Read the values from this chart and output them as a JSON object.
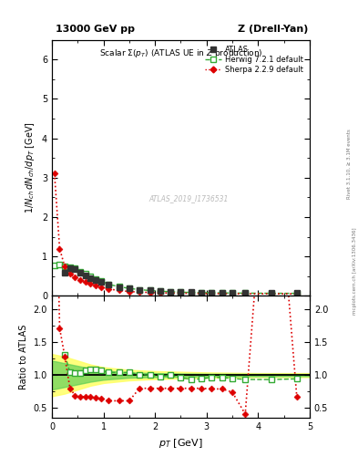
{
  "title_top": "13000 GeV pp",
  "title_right": "Z (Drell-Yan)",
  "plot_title": "Scalar $\\Sigma(p_T)$ (ATLAS UE in $Z$ production)",
  "ylabel_main": "$1/N_{ch}\\,dN_{ch}/dp_T$ [GeV]",
  "ylabel_ratio": "Ratio to ATLAS",
  "xlabel": "$p_T$ [GeV]",
  "watermark": "ATLAS_2019_I1736531",
  "right_label": "Rivet 3.1.10, ≥ 3.1M events",
  "right_label2": "mcplots.cern.ch [arXiv:1306.3436]",
  "atlas_x": [
    0.25,
    0.35,
    0.45,
    0.55,
    0.65,
    0.75,
    0.85,
    0.95,
    1.1,
    1.3,
    1.5,
    1.7,
    1.9,
    2.1,
    2.3,
    2.5,
    2.7,
    2.9,
    3.1,
    3.3,
    3.5,
    3.75,
    4.25,
    4.75
  ],
  "atlas_y": [
    0.58,
    0.7,
    0.68,
    0.6,
    0.53,
    0.46,
    0.4,
    0.355,
    0.285,
    0.225,
    0.185,
    0.158,
    0.138,
    0.122,
    0.11,
    0.1,
    0.093,
    0.088,
    0.083,
    0.08,
    0.078,
    0.076,
    0.073,
    0.07
  ],
  "atlas_yerr": [
    0.025,
    0.025,
    0.025,
    0.02,
    0.018,
    0.016,
    0.014,
    0.012,
    0.01,
    0.008,
    0.007,
    0.006,
    0.005,
    0.005,
    0.004,
    0.004,
    0.003,
    0.003,
    0.003,
    0.003,
    0.003,
    0.003,
    0.003,
    0.003
  ],
  "herwig_x": [
    0.05,
    0.15,
    0.25,
    0.35,
    0.45,
    0.55,
    0.65,
    0.75,
    0.85,
    0.95,
    1.1,
    1.3,
    1.5,
    1.7,
    1.9,
    2.1,
    2.3,
    2.5,
    2.7,
    2.9,
    3.1,
    3.3,
    3.5,
    3.75,
    4.25,
    4.75
  ],
  "herwig_y": [
    0.78,
    0.79,
    0.76,
    0.73,
    0.7,
    0.62,
    0.565,
    0.5,
    0.43,
    0.38,
    0.295,
    0.235,
    0.192,
    0.16,
    0.138,
    0.12,
    0.107,
    0.096,
    0.088,
    0.083,
    0.08,
    0.077,
    0.074,
    0.071,
    0.068,
    0.066
  ],
  "sherpa_x": [
    0.05,
    0.15,
    0.25,
    0.35,
    0.45,
    0.55,
    0.65,
    0.75,
    0.85,
    0.95,
    1.1,
    1.3,
    1.5,
    1.7,
    1.9,
    2.1,
    2.3,
    2.5,
    2.7,
    2.9,
    3.1,
    3.3,
    3.5,
    3.75,
    4.25,
    4.75
  ],
  "sherpa_y": [
    3.1,
    1.2,
    0.74,
    0.56,
    0.47,
    0.41,
    0.355,
    0.31,
    0.265,
    0.228,
    0.178,
    0.138,
    0.112,
    0.098,
    0.088,
    0.08,
    0.074,
    0.07,
    0.067,
    0.064,
    0.062,
    0.06,
    0.058,
    0.057,
    0.055,
    0.054
  ],
  "herwig_ratio_x": [
    0.25,
    0.35,
    0.45,
    0.55,
    0.65,
    0.75,
    0.85,
    0.95,
    1.1,
    1.3,
    1.5,
    1.7,
    1.9,
    2.1,
    2.3,
    2.5,
    2.7,
    2.9,
    3.1,
    3.3,
    3.5,
    3.75,
    4.25,
    4.75
  ],
  "herwig_ratio_y": [
    1.31,
    1.04,
    1.03,
    1.03,
    1.07,
    1.09,
    1.08,
    1.07,
    1.04,
    1.04,
    1.04,
    1.01,
    1.0,
    0.98,
    0.997,
    0.96,
    0.935,
    0.943,
    0.965,
    0.963,
    0.949,
    0.934,
    0.932,
    0.943
  ],
  "sherpa_ratio_x": [
    0.05,
    0.15,
    0.25,
    0.35,
    0.45,
    0.55,
    0.65,
    0.75,
    0.85,
    0.95,
    1.1,
    1.3,
    1.5,
    1.7,
    1.9,
    2.1,
    2.3,
    2.5,
    2.7,
    2.9,
    3.1,
    3.3,
    3.5,
    3.75,
    4.25,
    4.75
  ],
  "sherpa_ratio_y": [
    5.3,
    1.71,
    1.28,
    0.8,
    0.69,
    0.67,
    0.67,
    0.67,
    0.66,
    0.64,
    0.61,
    0.61,
    0.61,
    0.8,
    0.8,
    0.8,
    0.8,
    0.8,
    0.8,
    0.8,
    0.79,
    0.79,
    0.74,
    0.41,
    5.5,
    0.67
  ],
  "band_x": [
    0.0,
    0.25,
    0.5,
    0.75,
    1.0,
    1.5,
    2.0,
    2.5,
    3.0,
    3.5,
    4.0,
    4.5,
    5.0
  ],
  "band_yellow_low": [
    0.68,
    0.72,
    0.78,
    0.84,
    0.88,
    0.92,
    0.94,
    0.95,
    0.96,
    0.965,
    0.97,
    0.97,
    0.97
  ],
  "band_yellow_high": [
    1.32,
    1.28,
    1.22,
    1.16,
    1.12,
    1.08,
    1.06,
    1.05,
    1.04,
    1.035,
    1.03,
    1.03,
    1.03
  ],
  "band_green_low": [
    0.78,
    0.82,
    0.86,
    0.9,
    0.93,
    0.96,
    0.97,
    0.975,
    0.979,
    0.981,
    0.982,
    0.983,
    0.984
  ],
  "band_green_high": [
    1.22,
    1.18,
    1.14,
    1.1,
    1.07,
    1.04,
    1.03,
    1.025,
    1.021,
    1.019,
    1.018,
    1.017,
    1.016
  ],
  "atlas_color": "#333333",
  "herwig_color": "#33aa33",
  "sherpa_color": "#dd0000",
  "yellow_color": "#ffff66",
  "green_color": "#55cc55",
  "ylim_main": [
    0.0,
    6.5
  ],
  "ylim_ratio": [
    0.35,
    2.2
  ],
  "xlim": [
    0.0,
    5.0
  ],
  "main_yticks": [
    0,
    1,
    2,
    3,
    4,
    5,
    6
  ],
  "ratio_yticks": [
    0.5,
    1.0,
    1.5,
    2.0
  ]
}
